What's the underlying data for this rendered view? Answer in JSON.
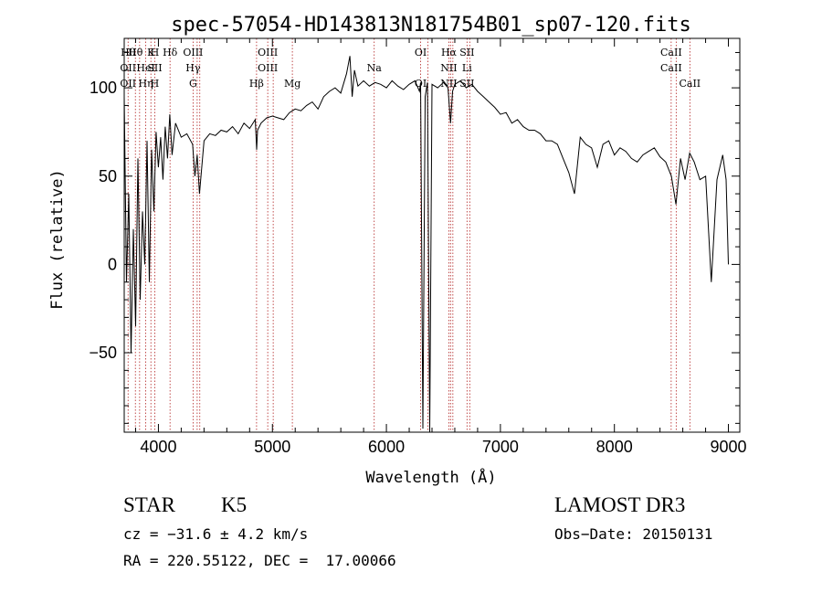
{
  "chart_data": {
    "type": "line",
    "title": "spec-57054-HD143813N181754B01_sp07-120.fits",
    "xlabel": "Wavelength (Å)",
    "ylabel": "Flux (relative)",
    "xlim": [
      3700,
      9100
    ],
    "ylim": [
      -95,
      128
    ],
    "xticks": [
      4000,
      5000,
      6000,
      7000,
      8000,
      9000
    ],
    "yticks": [
      -50,
      0,
      50,
      100
    ],
    "line_color": "#000000",
    "marker_color": "#b22222",
    "series": [
      {
        "x": [
          3700,
          3720,
          3740,
          3760,
          3780,
          3800,
          3820,
          3840,
          3860,
          3880,
          3900,
          3920,
          3940,
          3960,
          3980,
          4000,
          4020,
          4040,
          4060,
          4080,
          4100,
          4120,
          4150,
          4200,
          4250,
          4300,
          4320,
          4340,
          4360,
          4400,
          4450,
          4500,
          4550,
          4600,
          4650,
          4700,
          4750,
          4800,
          4850,
          4862,
          4870,
          4900,
          4950,
          5000,
          5050,
          5100,
          5150,
          5200,
          5250,
          5300,
          5350,
          5400,
          5450,
          5500,
          5550,
          5600,
          5650,
          5680,
          5700,
          5720,
          5750,
          5800,
          5850,
          5900,
          5950,
          6000,
          6050,
          6100,
          6150,
          6200,
          6250,
          6290,
          6300,
          6320,
          6340,
          6360,
          6380,
          6400,
          6450,
          6500,
          6540,
          6563,
          6580,
          6600,
          6650,
          6700,
          6750,
          6800,
          6850,
          6900,
          6950,
          7000,
          7050,
          7100,
          7150,
          7200,
          7250,
          7300,
          7350,
          7400,
          7450,
          7500,
          7550,
          7600,
          7650,
          7700,
          7750,
          7800,
          7850,
          7900,
          7950,
          8000,
          8050,
          8100,
          8150,
          8200,
          8250,
          8300,
          8350,
          8400,
          8450,
          8500,
          8540,
          8580,
          8620,
          8660,
          8700,
          8750,
          8800,
          8850,
          8900,
          8950,
          8980,
          9000
        ],
        "values": [
          95,
          -10,
          40,
          -50,
          20,
          -35,
          60,
          -20,
          30,
          0,
          70,
          -10,
          65,
          30,
          75,
          55,
          72,
          48,
          78,
          60,
          85,
          62,
          80,
          72,
          74,
          68,
          50,
          62,
          40,
          70,
          74,
          73,
          76,
          75,
          78,
          74,
          80,
          77,
          82,
          65,
          76,
          80,
          83,
          84,
          83,
          82,
          86,
          88,
          87,
          90,
          92,
          88,
          95,
          98,
          100,
          97,
          108,
          118,
          95,
          110,
          101,
          104,
          101,
          103,
          102,
          100,
          104,
          101,
          99,
          102,
          104,
          98,
          103,
          -93,
          95,
          103,
          -95,
          102,
          100,
          103,
          100,
          80,
          98,
          102,
          104,
          100,
          102,
          98,
          95,
          92,
          89,
          85,
          86,
          80,
          82,
          78,
          76,
          76,
          74,
          70,
          70,
          68,
          60,
          52,
          40,
          72,
          68,
          66,
          55,
          68,
          70,
          62,
          66,
          64,
          60,
          58,
          62,
          64,
          66,
          61,
          58,
          50,
          34,
          60,
          48,
          63,
          58,
          48,
          50,
          -10,
          48,
          62,
          48,
          0
        ]
      }
    ],
    "lines": [
      {
        "x": 3734,
        "labels": [
          "Hθ",
          "OII",
          "OII"
        ]
      },
      {
        "x": 3798,
        "labels": [
          "Hθ",
          "",
          ""
        ]
      },
      {
        "x": 3835,
        "labels": [
          "",
          "",
          ""
        ]
      },
      {
        "x": 3889,
        "labels": [
          "",
          "HeI",
          "Hη"
        ]
      },
      {
        "x": 3934,
        "labels": [
          "K",
          "",
          ""
        ]
      },
      {
        "x": 3968,
        "labels": [
          "H",
          "SII",
          "H"
        ]
      },
      {
        "x": 4102,
        "labels": [
          "Hδ",
          "",
          ""
        ]
      },
      {
        "x": 4304,
        "labels": [
          "OIII",
          "Hγ",
          "G"
        ]
      },
      {
        "x": 4340,
        "labels": [
          "",
          "",
          ""
        ]
      },
      {
        "x": 4363,
        "labels": [
          "",
          "",
          ""
        ]
      },
      {
        "x": 4861,
        "labels": [
          "",
          "",
          "Hβ"
        ]
      },
      {
        "x": 4959,
        "labels": [
          "OIII",
          "OIII",
          ""
        ]
      },
      {
        "x": 5007,
        "labels": [
          "",
          "",
          ""
        ]
      },
      {
        "x": 5175,
        "labels": [
          "",
          "",
          "Mg"
        ]
      },
      {
        "x": 5893,
        "labels": [
          "",
          "Na",
          ""
        ]
      },
      {
        "x": 6300,
        "labels": [
          "OI",
          "",
          "OI"
        ]
      },
      {
        "x": 6364,
        "labels": [
          "",
          "",
          ""
        ]
      },
      {
        "x": 6548,
        "labels": [
          "Hα",
          "NII",
          "NII"
        ]
      },
      {
        "x": 6563,
        "labels": [
          "",
          "",
          ""
        ]
      },
      {
        "x": 6583,
        "labels": [
          "",
          "",
          ""
        ]
      },
      {
        "x": 6707,
        "labels": [
          "SII",
          "Li",
          "SII"
        ]
      },
      {
        "x": 6731,
        "labels": [
          "",
          "",
          ""
        ]
      },
      {
        "x": 8498,
        "labels": [
          "CaII",
          "CaII",
          ""
        ]
      },
      {
        "x": 8542,
        "labels": [
          "",
          "",
          ""
        ]
      },
      {
        "x": 8662,
        "labels": [
          "",
          "",
          "CaII"
        ]
      }
    ]
  },
  "info": {
    "class_label": "STAR",
    "subclass": "K5",
    "survey": "LAMOST DR3",
    "cz": "cz = −31.6 ± 4.2 km/s",
    "obs_date": "Obs−Date: 20150131",
    "coords": "RA = 220.55122, DEC =  17.00066"
  }
}
